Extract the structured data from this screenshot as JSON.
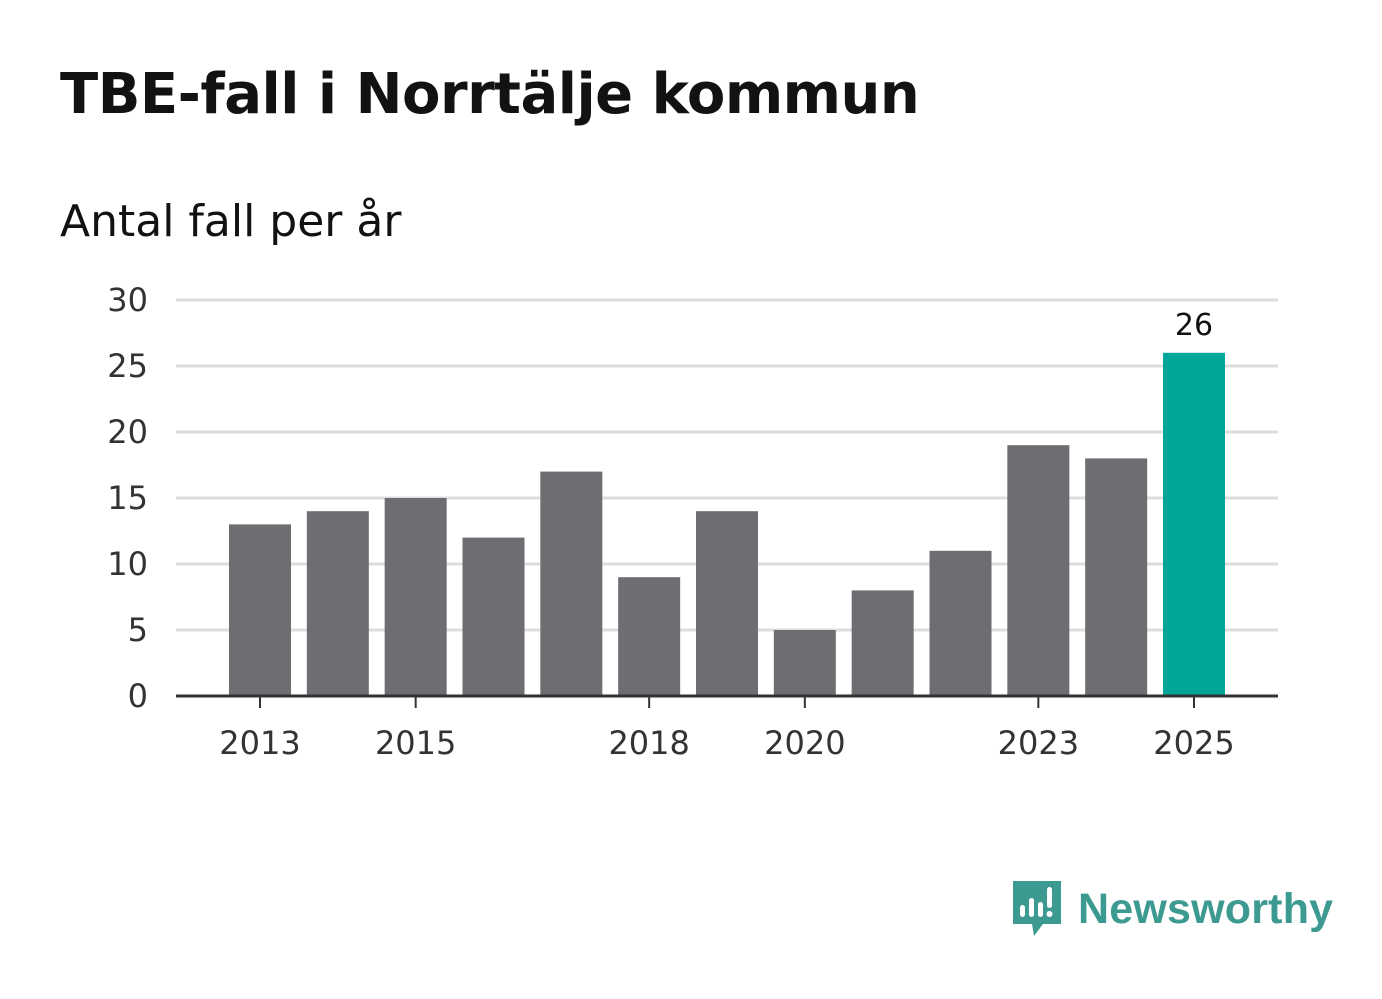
{
  "header": {
    "title": "TBE-fall i Norrtälje kommun",
    "subtitle": "Antal fall per år"
  },
  "logo": {
    "text": "Newsworthy",
    "icon": "newsworthy-chart-bubble-icon",
    "color": "#3d9a91"
  },
  "colors": {
    "bar": "#6e6d72",
    "highlight": "#00a699",
    "grid": "#dddddd",
    "axis": "#333333"
  },
  "chart_data": {
    "type": "bar",
    "title": "TBE-fall i Norrtälje kommun",
    "subtitle": "Antal fall per år",
    "xlabel": "",
    "ylabel": "",
    "categories": [
      2013,
      2014,
      2015,
      2016,
      2017,
      2018,
      2019,
      2020,
      2021,
      2022,
      2023,
      2024,
      2025
    ],
    "values": [
      13,
      14,
      15,
      12,
      17,
      9,
      14,
      5,
      8,
      11,
      19,
      18,
      26
    ],
    "highlight_index": 12,
    "data_labels": [
      {
        "index": 12,
        "text": "26"
      }
    ],
    "ylim": [
      0,
      30
    ],
    "yticks": [
      0,
      5,
      10,
      15,
      20,
      25,
      30
    ],
    "xticks": [
      2013,
      2015,
      2018,
      2020,
      2023,
      2025
    ],
    "grid": true
  }
}
